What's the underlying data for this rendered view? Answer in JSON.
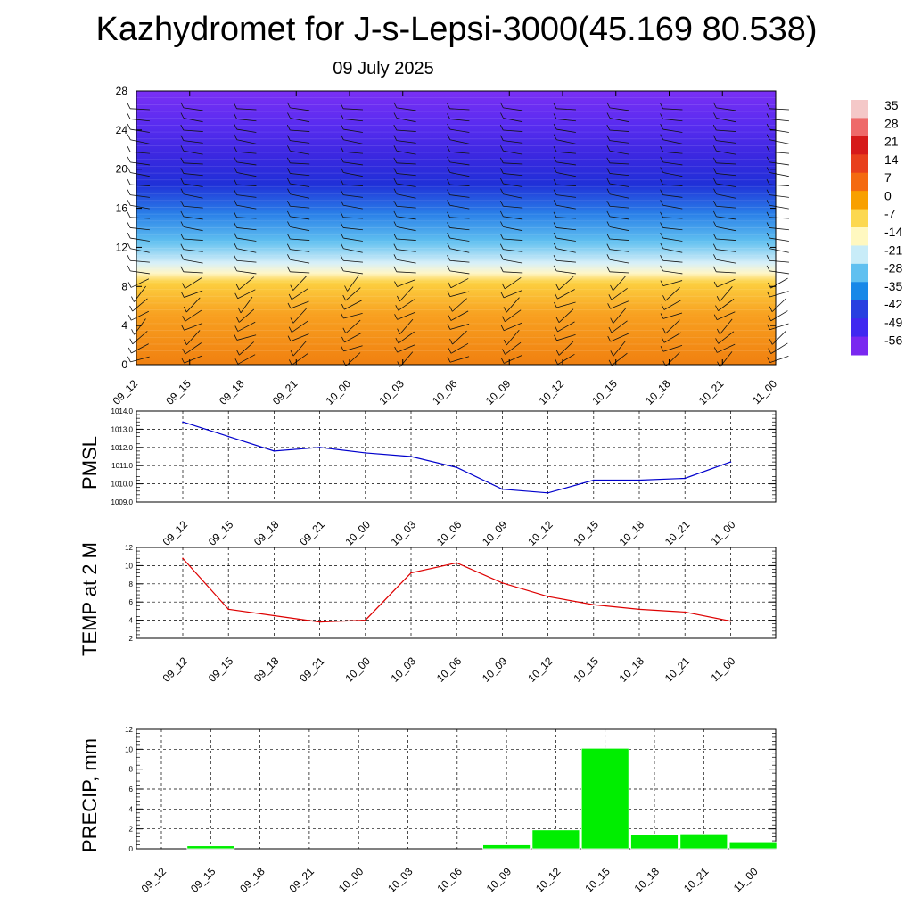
{
  "title": "Kazhydromet for J-s-Lepsi-3000(45.169 80.538)",
  "subtitle": "09 July 2025",
  "colors": {
    "pmsl_line": "#0000cc",
    "temp_line": "#dd0000",
    "precip_bar": "#00ee00",
    "grid": "#000000"
  },
  "chart_data": [
    {
      "type": "heatmap",
      "name_hint": "temperature-cross-section",
      "x": [
        "09_12",
        "09_15",
        "09_18",
        "09_21",
        "10_00",
        "10_03",
        "10_06",
        "10_09",
        "10_12",
        "10_15",
        "10_18",
        "10_21",
        "11_00"
      ],
      "yticks": [
        0,
        4,
        8,
        12,
        16,
        20,
        24,
        28
      ],
      "ylim": [
        0,
        28
      ],
      "wind_barbs": true,
      "colorbar_labels": [
        "35",
        "28",
        "21",
        "14",
        "7",
        "0",
        "-7",
        "-14",
        "-21",
        "-28",
        "-35",
        "-42",
        "-49",
        "-56"
      ],
      "colorbar_colors": [
        "#f4c8c8",
        "#ee6a6a",
        "#d61a1a",
        "#e8401c",
        "#f46a10",
        "#f8a000",
        "#fcd850",
        "#fff8c0",
        "#c8ecf8",
        "#60c0f0",
        "#1888e8",
        "#2840e0",
        "#4028f0",
        "#7a28f0"
      ]
    },
    {
      "type": "line",
      "ylabel": "PMSL",
      "x": [
        "09_12",
        "09_15",
        "09_18",
        "09_21",
        "10_00",
        "10_03",
        "10_06",
        "10_09",
        "10_12",
        "10_15",
        "10_18",
        "10_21",
        "11_00"
      ],
      "values": [
        1013.4,
        1012.6,
        1011.8,
        1012.0,
        1011.7,
        1011.5,
        1010.9,
        1009.7,
        1009.5,
        1010.2,
        1010.2,
        1010.3,
        1011.2
      ],
      "yticks": [
        "1014.0",
        "1013.0",
        "1012.0",
        "1011.0",
        "1010.0",
        "1009.0"
      ],
      "ylim": [
        1009,
        1014
      ],
      "grid": true
    },
    {
      "type": "line",
      "ylabel": "TEMP at 2 M",
      "x": [
        "09_12",
        "09_15",
        "09_18",
        "09_21",
        "10_00",
        "10_03",
        "10_06",
        "10_09",
        "10_12",
        "10_15",
        "10_18",
        "10_21",
        "11_00"
      ],
      "values": [
        10.8,
        5.2,
        4.5,
        3.8,
        4.0,
        9.2,
        10.3,
        8.1,
        6.6,
        5.7,
        5.2,
        4.9,
        3.9
      ],
      "yticks": [
        "12",
        "10",
        "8",
        "6",
        "4",
        "2"
      ],
      "ylim": [
        2,
        12
      ],
      "grid": true
    },
    {
      "type": "bar",
      "ylabel": "PRECIP, mm",
      "categories": [
        "09_12",
        "09_15",
        "09_18",
        "09_21",
        "10_00",
        "10_03",
        "10_06",
        "10_09",
        "10_12",
        "10_15",
        "10_18",
        "10_21",
        "11_00"
      ],
      "values": [
        0,
        0.3,
        0,
        0,
        0,
        0,
        0,
        0.4,
        1.9,
        10.1,
        1.4,
        1.5,
        0.7
      ],
      "yticks": [
        "12",
        "10",
        "8",
        "6",
        "4",
        "2",
        "0"
      ],
      "ylim": [
        0,
        12
      ],
      "grid": true
    }
  ]
}
